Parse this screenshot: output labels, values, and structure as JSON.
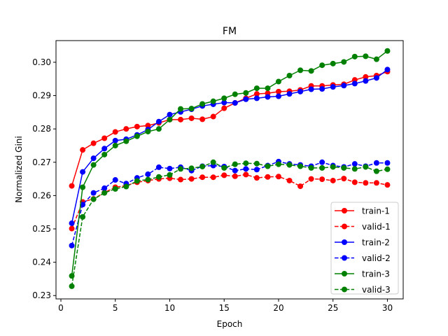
{
  "chart_data": {
    "type": "line",
    "title": "FM",
    "xlabel": "Epoch",
    "ylabel": "Normalized Gini",
    "xlim": [
      -0.45,
      31.45
    ],
    "ylim": [
      0.229,
      0.3065
    ],
    "xticks": [
      0,
      5,
      10,
      15,
      20,
      25,
      30
    ],
    "xtick_labels": [
      "0",
      "5",
      "10",
      "15",
      "20",
      "25",
      "30"
    ],
    "yticks": [
      0.23,
      0.24,
      0.25,
      0.26,
      0.27,
      0.28,
      0.29,
      0.3
    ],
    "ytick_labels": [
      "0.23",
      "0.24",
      "0.25",
      "0.26",
      "0.27",
      "0.28",
      "0.29",
      "0.30"
    ],
    "legend_position": "lower-right",
    "x": [
      1,
      2,
      3,
      4,
      5,
      6,
      7,
      8,
      9,
      10,
      11,
      12,
      13,
      14,
      15,
      16,
      17,
      18,
      19,
      20,
      21,
      22,
      23,
      24,
      25,
      26,
      27,
      28,
      29,
      30
    ],
    "series": [
      {
        "name": "train-1",
        "color": "#ff0000",
        "dashed": false,
        "values": [
          0.2629,
          0.2737,
          0.2757,
          0.2772,
          0.2791,
          0.28,
          0.2807,
          0.281,
          0.2818,
          0.2828,
          0.2828,
          0.2832,
          0.2829,
          0.2837,
          0.2862,
          0.2878,
          0.2892,
          0.2905,
          0.2907,
          0.2912,
          0.2913,
          0.2917,
          0.2929,
          0.2929,
          0.2932,
          0.2934,
          0.2947,
          0.2956,
          0.296,
          0.2972
        ]
      },
      {
        "name": "valid-1",
        "color": "#ff0000",
        "dashed": true,
        "values": [
          0.2501,
          0.2581,
          0.259,
          0.2609,
          0.2625,
          0.263,
          0.264,
          0.2645,
          0.265,
          0.2652,
          0.2648,
          0.265,
          0.2655,
          0.2655,
          0.2661,
          0.2658,
          0.2663,
          0.2653,
          0.2656,
          0.2657,
          0.2645,
          0.2628,
          0.265,
          0.2649,
          0.2645,
          0.2651,
          0.264,
          0.2638,
          0.2638,
          0.2632
        ]
      },
      {
        "name": "train-2",
        "color": "#0000ff",
        "dashed": false,
        "values": [
          0.2517,
          0.2671,
          0.2712,
          0.2741,
          0.2765,
          0.2769,
          0.2782,
          0.2798,
          0.2822,
          0.2843,
          0.2851,
          0.2859,
          0.2869,
          0.2874,
          0.2879,
          0.2878,
          0.2889,
          0.2892,
          0.2896,
          0.2898,
          0.2905,
          0.2912,
          0.2919,
          0.292,
          0.2926,
          0.293,
          0.2936,
          0.2944,
          0.2953,
          0.2978
        ]
      },
      {
        "name": "valid-2",
        "color": "#0000ff",
        "dashed": true,
        "values": [
          0.245,
          0.2573,
          0.2608,
          0.2622,
          0.2647,
          0.2636,
          0.2653,
          0.2664,
          0.2685,
          0.2681,
          0.2685,
          0.2675,
          0.2688,
          0.269,
          0.2687,
          0.2675,
          0.268,
          0.2678,
          0.269,
          0.2702,
          0.2695,
          0.2692,
          0.2688,
          0.27,
          0.269,
          0.2686,
          0.2695,
          0.2688,
          0.2698,
          0.2698
        ]
      },
      {
        "name": "train-3",
        "color": "#008000",
        "dashed": false,
        "values": [
          0.2359,
          0.2625,
          0.2692,
          0.2723,
          0.275,
          0.2763,
          0.2778,
          0.2792,
          0.28,
          0.2828,
          0.286,
          0.2861,
          0.2875,
          0.2883,
          0.2892,
          0.2904,
          0.2908,
          0.2922,
          0.2922,
          0.2942,
          0.296,
          0.2976,
          0.2974,
          0.2991,
          0.2996,
          0.3001,
          0.3017,
          0.3018,
          0.3009,
          0.3034
        ]
      },
      {
        "name": "valid-3",
        "color": "#008000",
        "dashed": true,
        "values": [
          0.2328,
          0.2536,
          0.2589,
          0.2608,
          0.262,
          0.2627,
          0.2644,
          0.2648,
          0.2656,
          0.2662,
          0.268,
          0.2682,
          0.2687,
          0.27,
          0.2683,
          0.2694,
          0.2697,
          0.2696,
          0.2688,
          0.2694,
          0.2692,
          0.2688,
          0.2683,
          0.2683,
          0.2686,
          0.2683,
          0.268,
          0.2686,
          0.2673,
          0.2679
        ]
      }
    ]
  }
}
